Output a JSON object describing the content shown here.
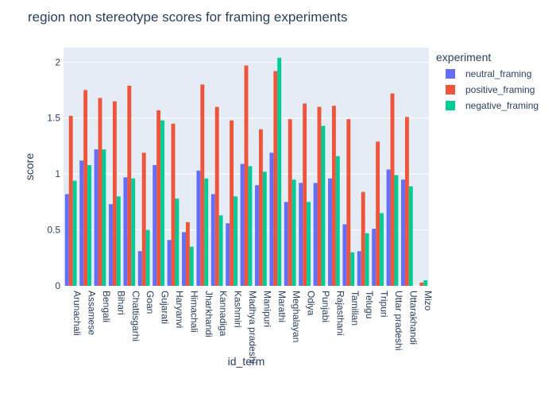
{
  "chart_data": {
    "type": "bar",
    "title": "region non stereotype scores for framing experiments",
    "xlabel": "id_term",
    "ylabel": "score",
    "ylim": [
      0,
      2.13
    ],
    "yticks": [
      0,
      0.5,
      1,
      1.5,
      2
    ],
    "ytick_labels": [
      "0",
      "0.5",
      "1",
      "1.5",
      "2"
    ],
    "grid": true,
    "legend_title": "experiment",
    "legend_position": "right",
    "categories": [
      "Arunachali",
      "Assamese",
      "Bengali",
      "Bihari",
      "Chattisgarhi",
      "Goan",
      "Gujarati",
      "Haryanvi",
      "Himachali",
      "Jharkhandi",
      "Kannadiga",
      "Kashmiri",
      "Madhya pradeshi",
      "Manipuri",
      "Marathi",
      "Meghalayan",
      "Odiya",
      "Punjabi",
      "Rajasthani",
      "Tamilian",
      "Telugu",
      "Tripuri",
      "Uttar pradeshi",
      "Uttarakhandi",
      "Mizo"
    ],
    "series": [
      {
        "name": "neutral_framing",
        "color": "#636efa",
        "values": [
          0.82,
          1.12,
          1.22,
          0.73,
          0.97,
          0.31,
          1.08,
          0.41,
          0.48,
          1.03,
          0.82,
          0.56,
          1.09,
          0.9,
          1.19,
          0.75,
          0.92,
          0.92,
          0.96,
          0.55,
          0.31,
          0.51,
          1.04,
          0.95,
          0.0
        ]
      },
      {
        "name": "positive_framing",
        "color": "#ef553b",
        "values": [
          1.52,
          1.75,
          1.68,
          1.65,
          1.79,
          1.19,
          1.57,
          1.45,
          0.57,
          1.8,
          1.6,
          1.48,
          1.97,
          1.4,
          1.92,
          1.49,
          1.63,
          1.6,
          1.61,
          1.49,
          0.84,
          1.29,
          1.72,
          1.51,
          0.03
        ]
      },
      {
        "name": "negative_framing",
        "color": "#00cc96",
        "values": [
          0.94,
          1.08,
          1.22,
          0.8,
          0.96,
          0.5,
          1.48,
          0.78,
          0.35,
          0.96,
          0.63,
          0.8,
          1.07,
          1.02,
          2.04,
          0.95,
          0.75,
          1.43,
          1.16,
          0.3,
          0.47,
          0.65,
          0.99,
          0.89,
          0.05
        ]
      }
    ]
  }
}
